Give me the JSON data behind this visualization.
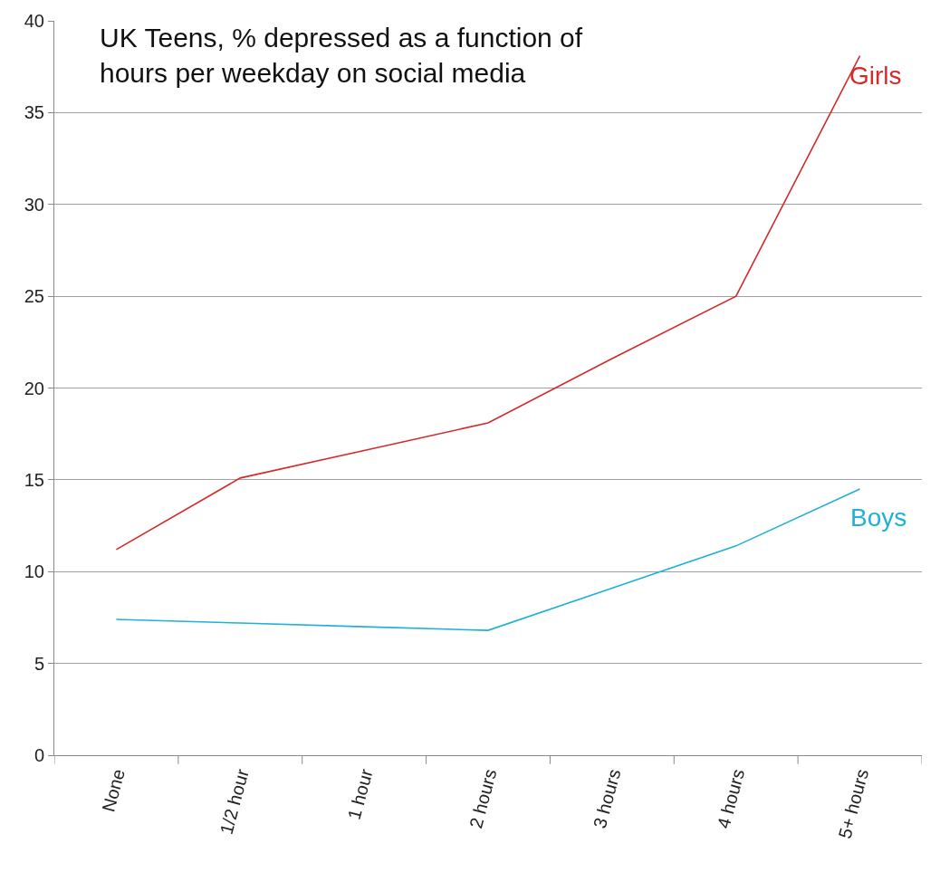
{
  "chart_data": {
    "type": "line",
    "title": "UK Teens, % depressed as a function of\nhours per weekday on social media",
    "categories": [
      "None",
      "1/2 hour",
      "1 hour",
      "2 hours",
      "3 hours",
      "4 hours",
      "5+ hours"
    ],
    "series": [
      {
        "name": "Girls",
        "color": "#d42a2a",
        "values": [
          11.2,
          15.1,
          16.6,
          18.1,
          21.6,
          25.0,
          38.1
        ]
      },
      {
        "name": "Boys",
        "color": "#1fb1d6",
        "values": [
          7.4,
          7.2,
          7.0,
          6.8,
          9.1,
          11.4,
          14.5
        ]
      }
    ],
    "ylim": [
      0,
      40
    ],
    "yticks": [
      0,
      5,
      10,
      15,
      20,
      25,
      30,
      35,
      40
    ],
    "grid": "y",
    "legend": false,
    "marker": "none",
    "line_style": "solid"
  }
}
